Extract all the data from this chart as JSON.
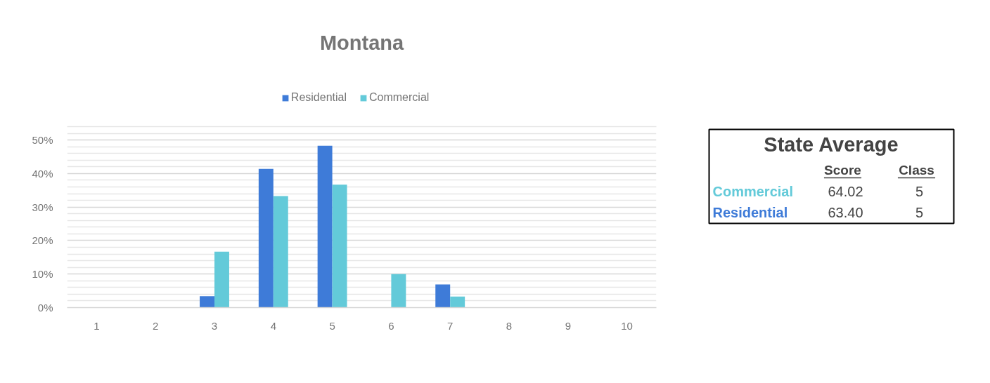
{
  "chart_data": [
    {
      "type": "bar",
      "title": "Montana",
      "categories": [
        "1",
        "2",
        "3",
        "4",
        "5",
        "6",
        "7",
        "8",
        "9",
        "10"
      ],
      "series": [
        {
          "name": "Residential",
          "color": "#3e7bd8",
          "values": [
            0,
            0,
            3.4,
            41.4,
            48.3,
            0,
            6.9,
            0,
            0,
            0
          ]
        },
        {
          "name": "Commercial",
          "color": "#63cad9",
          "values": [
            0,
            0,
            16.7,
            33.3,
            36.7,
            10.0,
            3.3,
            0,
            0,
            0
          ]
        }
      ],
      "ylim": [
        0,
        54
      ],
      "yticks": [
        {
          "value": 0,
          "label": "0%"
        },
        {
          "value": 2,
          "label": null
        },
        {
          "value": 4,
          "label": null
        },
        {
          "value": 6,
          "label": null
        },
        {
          "value": 8,
          "label": null
        },
        {
          "value": 10,
          "label": "10%"
        },
        {
          "value": 12,
          "label": null
        },
        {
          "value": 14,
          "label": null
        },
        {
          "value": 16,
          "label": null
        },
        {
          "value": 18,
          "label": null
        },
        {
          "value": 20,
          "label": "20%"
        },
        {
          "value": 22,
          "label": null
        },
        {
          "value": 24,
          "label": null
        },
        {
          "value": 26,
          "label": null
        },
        {
          "value": 28,
          "label": null
        },
        {
          "value": 30,
          "label": "30%"
        },
        {
          "value": 32,
          "label": null
        },
        {
          "value": 34,
          "label": null
        },
        {
          "value": 36,
          "label": null
        },
        {
          "value": 38,
          "label": null
        },
        {
          "value": 40,
          "label": "40%"
        },
        {
          "value": 42,
          "label": null
        },
        {
          "value": 44,
          "label": null
        },
        {
          "value": 46,
          "label": null
        },
        {
          "value": 48,
          "label": null
        },
        {
          "value": 50,
          "label": "50%"
        },
        {
          "value": 52,
          "label": null
        },
        {
          "value": 54,
          "label": null
        }
      ],
      "grid": "y",
      "legend": "top"
    },
    {
      "type": "other",
      "title": "State Average",
      "categories": [
        "Score",
        "Class"
      ],
      "series": [
        {
          "name": "Commercial",
          "color": "#63cad9",
          "values": [
            64.02,
            5
          ],
          "value_labels": [
            "64.02",
            "5"
          ]
        },
        {
          "name": "Residential",
          "color": "#3e7bd8",
          "values": [
            63.4,
            5
          ],
          "value_labels": [
            "63.40",
            "5"
          ]
        }
      ]
    }
  ]
}
